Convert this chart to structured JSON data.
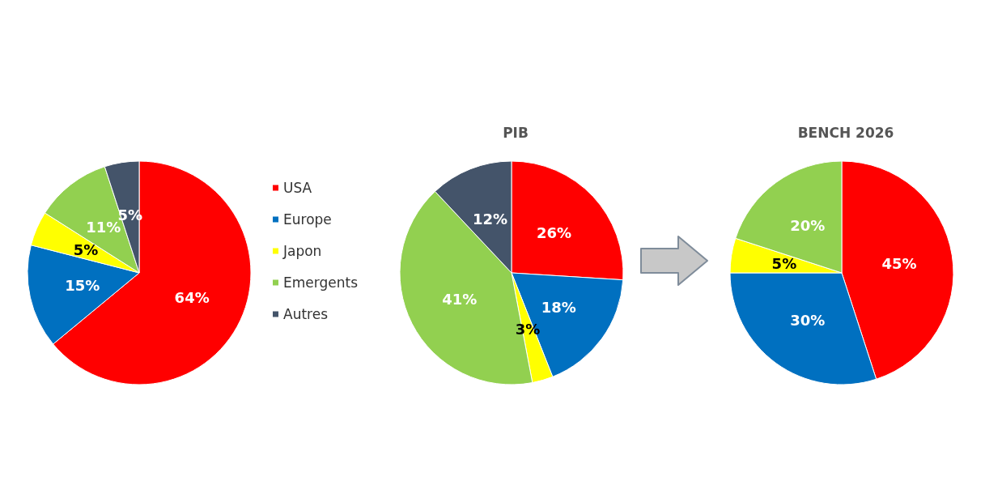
{
  "chart_data": [
    {
      "type": "pie",
      "title": null,
      "categories": [
        null,
        null,
        null,
        null,
        null
      ],
      "values": [
        64,
        15,
        5,
        11,
        5
      ],
      "colors": [
        "#ff0000",
        "#0070c0",
        "#ffff00",
        "#92d050",
        "#44546a"
      ],
      "value_labels": [
        "64%",
        "15%",
        "5%",
        "11%",
        "5%"
      ]
    },
    {
      "type": "pie",
      "title": "PIB",
      "categories": [
        "USA",
        "Europe",
        "Japon",
        "Emergents",
        "Autres"
      ],
      "values": [
        26,
        18,
        3,
        41,
        12
      ],
      "colors": [
        "#ff0000",
        "#0070c0",
        "#ffff00",
        "#92d050",
        "#44546a"
      ],
      "value_labels": [
        "26%",
        "18%",
        "3%",
        "41%",
        "12%"
      ],
      "legend": "left"
    },
    {
      "type": "pie",
      "title": "BENCH 2026",
      "categories": [
        null,
        null,
        null,
        null
      ],
      "values": [
        45,
        30,
        5,
        20
      ],
      "colors": [
        "#ff0000",
        "#0070c0",
        "#ffff00",
        "#92d050"
      ],
      "value_labels": [
        "45%",
        "30%",
        "5%",
        "20%"
      ]
    }
  ]
}
